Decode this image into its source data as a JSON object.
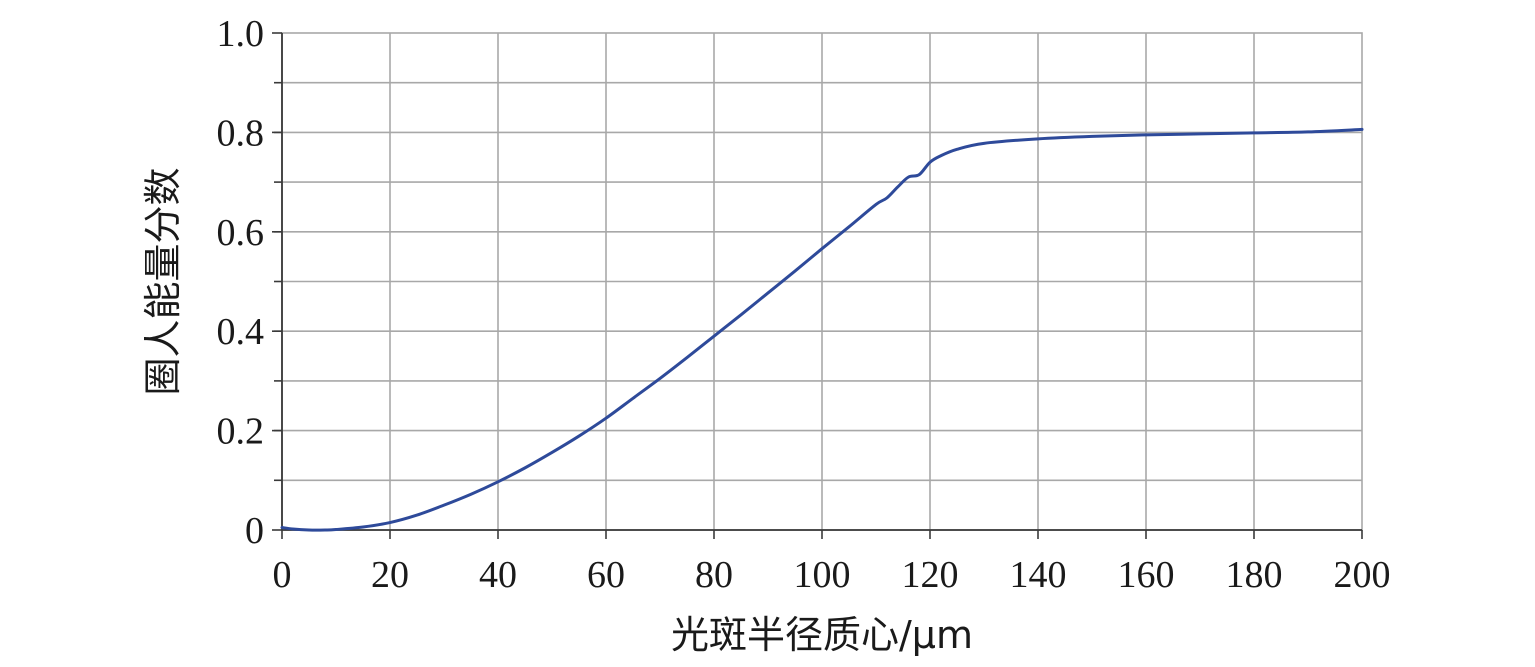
{
  "chart_data": {
    "type": "line",
    "title": "",
    "xlabel": "光斑半径质心/μm",
    "ylabel": "圈人能量分数",
    "xlim": [
      0,
      200
    ],
    "ylim": [
      0,
      1.0
    ],
    "x_ticks": [
      0,
      20,
      40,
      60,
      80,
      100,
      120,
      140,
      160,
      180,
      200
    ],
    "x_tick_labels": [
      "0",
      "20",
      "40",
      "60",
      "80",
      "100",
      "120",
      "140",
      "160",
      "180",
      "200"
    ],
    "y_ticks": [
      0,
      0.2,
      0.4,
      0.6,
      0.8,
      1.0
    ],
    "y_tick_labels": [
      "0",
      "0.2",
      "0.4",
      "0.6",
      "0.8",
      "1.0"
    ],
    "grid": true,
    "series": [
      {
        "color": "#2e4a9a",
        "x": [
          0,
          2,
          5,
          8,
          10,
          15,
          20,
          25,
          30,
          35,
          40,
          45,
          50,
          55,
          60,
          65,
          70,
          75,
          80,
          85,
          90,
          95,
          100,
          105,
          110,
          112,
          114,
          116,
          118,
          120,
          122,
          125,
          130,
          140,
          150,
          160,
          170,
          180,
          190,
          200
        ],
        "y": [
          0.005,
          0.002,
          0.0,
          0.0,
          0.001,
          0.006,
          0.015,
          0.03,
          0.05,
          0.072,
          0.097,
          0.125,
          0.156,
          0.189,
          0.225,
          0.265,
          0.305,
          0.347,
          0.39,
          0.433,
          0.477,
          0.521,
          0.566,
          0.61,
          0.655,
          0.668,
          0.69,
          0.71,
          0.715,
          0.74,
          0.753,
          0.766,
          0.778,
          0.787,
          0.792,
          0.795,
          0.797,
          0.799,
          0.801,
          0.806
        ]
      }
    ]
  }
}
